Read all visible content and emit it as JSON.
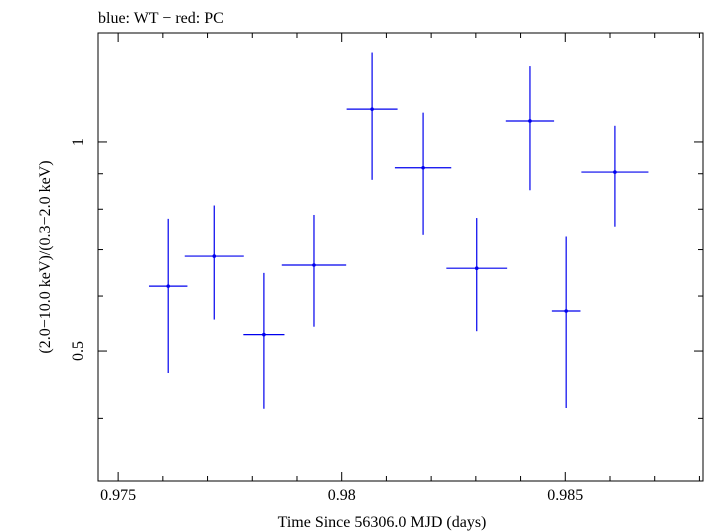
{
  "chart_data": {
    "type": "scatter",
    "title": "blue: WT − red: PC",
    "xlabel": "Time Since 56306.0 MJD (days)",
    "ylabel": "(2.0−10.0 keV)/(0.3−2.0 keV)",
    "xlim": [
      0.97455,
      0.98808
    ],
    "ylim": [
      0.325,
      1.435
    ],
    "y_scale": "log",
    "xticks": [
      {
        "value": 0.975,
        "label": "0.975"
      },
      {
        "value": 0.98,
        "label": "0.98"
      },
      {
        "value": 0.985,
        "label": "0.985"
      }
    ],
    "x_minor_step": 0.001,
    "yticks": [
      {
        "value": 0.5,
        "label": "0.5"
      },
      {
        "value": 1.0,
        "label": "1"
      }
    ],
    "y_minor": [
      0.4,
      0.6,
      0.7,
      0.8,
      0.9
    ],
    "series": [
      {
        "name": "WT",
        "color": "#0000ee",
        "points": [
          {
            "x": 0.97612,
            "xerr_lo": 0.00043,
            "xerr_hi": 0.00043,
            "y": 0.62,
            "y_lo": 0.465,
            "y_hi": 0.775
          },
          {
            "x": 0.97715,
            "xerr_lo": 0.00066,
            "xerr_hi": 0.00066,
            "y": 0.685,
            "y_lo": 0.555,
            "y_hi": 0.81
          },
          {
            "x": 0.97826,
            "xerr_lo": 0.00046,
            "xerr_hi": 0.00046,
            "y": 0.528,
            "y_lo": 0.413,
            "y_hi": 0.648
          },
          {
            "x": 0.97938,
            "xerr_lo": 0.00072,
            "xerr_hi": 0.00072,
            "y": 0.665,
            "y_lo": 0.542,
            "y_hi": 0.785
          },
          {
            "x": 0.98068,
            "xerr_lo": 0.00057,
            "xerr_hi": 0.00057,
            "y": 1.115,
            "y_lo": 0.882,
            "y_hi": 1.345
          },
          {
            "x": 0.98182,
            "xerr_lo": 0.00063,
            "xerr_hi": 0.00063,
            "y": 0.918,
            "y_lo": 0.735,
            "y_hi": 1.102
          },
          {
            "x": 0.98302,
            "xerr_lo": 0.00068,
            "xerr_hi": 0.00068,
            "y": 0.658,
            "y_lo": 0.534,
            "y_hi": 0.777
          },
          {
            "x": 0.98421,
            "xerr_lo": 0.00054,
            "xerr_hi": 0.00054,
            "y": 1.072,
            "y_lo": 0.852,
            "y_hi": 1.286
          },
          {
            "x": 0.98502,
            "xerr_lo": 0.00032,
            "xerr_hi": 0.00032,
            "y": 0.571,
            "y_lo": 0.414,
            "y_hi": 0.731
          },
          {
            "x": 0.98611,
            "xerr_lo": 0.00075,
            "xerr_hi": 0.00075,
            "y": 0.905,
            "y_lo": 0.755,
            "y_hi": 1.055
          }
        ]
      }
    ]
  }
}
